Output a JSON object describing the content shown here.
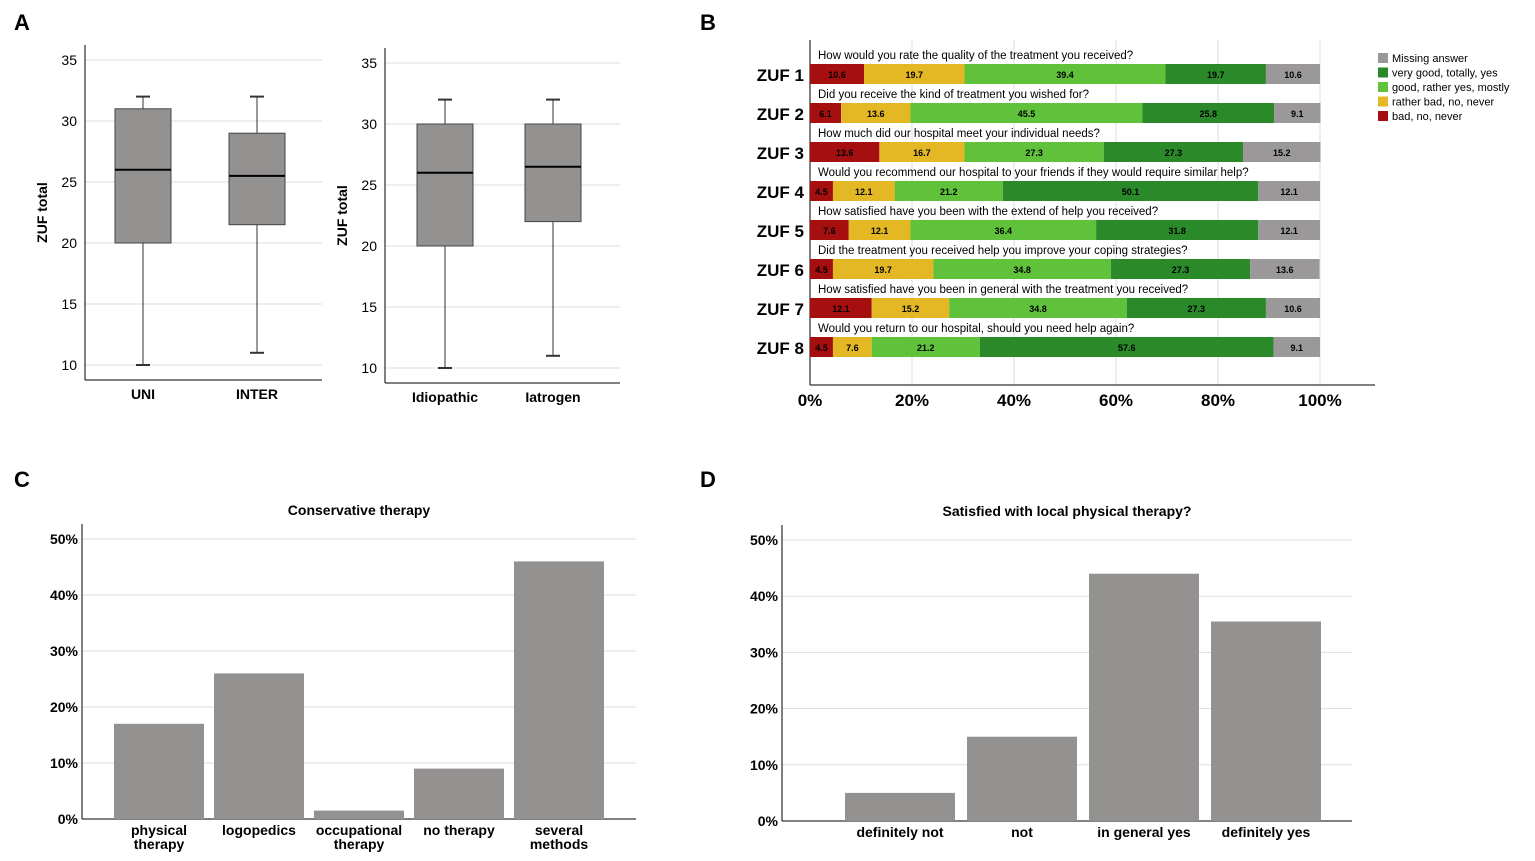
{
  "panel_labels": [
    "A",
    "B",
    "C",
    "D"
  ],
  "chart_data": [
    {
      "type": "boxplot",
      "panel": "A1",
      "ylabel": "ZUF total",
      "ylim": [
        10,
        35
      ],
      "yticks": [
        10,
        15,
        20,
        25,
        30,
        35
      ],
      "grid": true,
      "categories": [
        "UNI",
        "INTER"
      ],
      "boxes": [
        {
          "min": 10,
          "q1": 20,
          "median": 26,
          "q3": 31,
          "max": 32
        },
        {
          "min": 11,
          "q1": 21.5,
          "median": 25.5,
          "q3": 29,
          "max": 32
        }
      ]
    },
    {
      "type": "boxplot",
      "panel": "A2",
      "ylabel": "ZUF total",
      "ylim": [
        10,
        35
      ],
      "yticks": [
        10,
        15,
        20,
        25,
        30,
        35
      ],
      "grid": true,
      "categories": [
        "Idiopathic",
        "Iatrogen"
      ],
      "boxes": [
        {
          "min": 10,
          "q1": 20,
          "median": 26,
          "q3": 30,
          "max": 32
        },
        {
          "min": 11,
          "q1": 22,
          "median": 26.5,
          "q3": 30,
          "max": 32
        }
      ]
    },
    {
      "type": "bar",
      "stacked": true,
      "orientation": "horizontal",
      "panel": "B",
      "xlim": [
        0,
        100
      ],
      "xticks": [
        "0%",
        "20%",
        "40%",
        "60%",
        "80%",
        "100%"
      ],
      "legend_position": "right",
      "categories": [
        "ZUF 1",
        "ZUF 2",
        "ZUF 3",
        "ZUF 4",
        "ZUF 5",
        "ZUF 6",
        "ZUF 7",
        "ZUF 8"
      ],
      "questions": [
        "How would you rate the quality of the treatment you received?",
        "Did you receive the kind of treatment you wished for?",
        "How much did our hospital meet your individual needs?",
        "Would you recommend our hospital to your friends if they would require similar help?",
        "How satisfied have you been with the extend of help you received?",
        "Did the treatment you received help you improve your coping strategies?",
        "How satisfied have you been in general with the treatment you received?",
        "Would you return to our hospital, should you need help again?"
      ],
      "series": [
        {
          "name": "bad, no, never",
          "color": "#a50f0f",
          "values": [
            10.6,
            6.1,
            13.6,
            4.5,
            7.6,
            4.5,
            12.1,
            4.5
          ]
        },
        {
          "name": "rather bad, no, never",
          "color": "#e3b824",
          "values": [
            19.7,
            13.6,
            16.7,
            12.1,
            12.1,
            19.7,
            15.2,
            7.6
          ]
        },
        {
          "name": "good, rather yes, mostly",
          "color": "#5fc23a",
          "values": [
            39.4,
            45.5,
            27.3,
            21.2,
            36.4,
            34.8,
            34.8,
            21.2
          ]
        },
        {
          "name": "very good, totally, yes",
          "color": "#2a8a2a",
          "values": [
            19.7,
            25.8,
            27.3,
            50.1,
            31.8,
            27.3,
            27.3,
            57.6
          ]
        },
        {
          "name": "Missing answer",
          "color": "#9a9898",
          "values": [
            10.6,
            9.1,
            15.2,
            12.1,
            12.1,
            13.6,
            10.6,
            9.1
          ]
        }
      ]
    },
    {
      "type": "bar",
      "panel": "C",
      "title": "Conservative therapy",
      "ylim": [
        0,
        50
      ],
      "yticks": [
        "0%",
        "10%",
        "20%",
        "30%",
        "40%",
        "50%"
      ],
      "categories": [
        "physical therapy",
        "logopedics",
        "occupational therapy",
        "no therapy",
        "several methods"
      ],
      "values": [
        17,
        26,
        1.5,
        9,
        46
      ]
    },
    {
      "type": "bar",
      "panel": "D",
      "title": "Satisfied with local physical therapy?",
      "ylim": [
        0,
        50
      ],
      "yticks": [
        "0%",
        "10%",
        "20%",
        "30%",
        "40%",
        "50%"
      ],
      "categories": [
        "definitely not",
        "not",
        "in general yes",
        "definitely yes"
      ],
      "values": [
        5,
        15,
        44,
        35.5
      ]
    }
  ]
}
